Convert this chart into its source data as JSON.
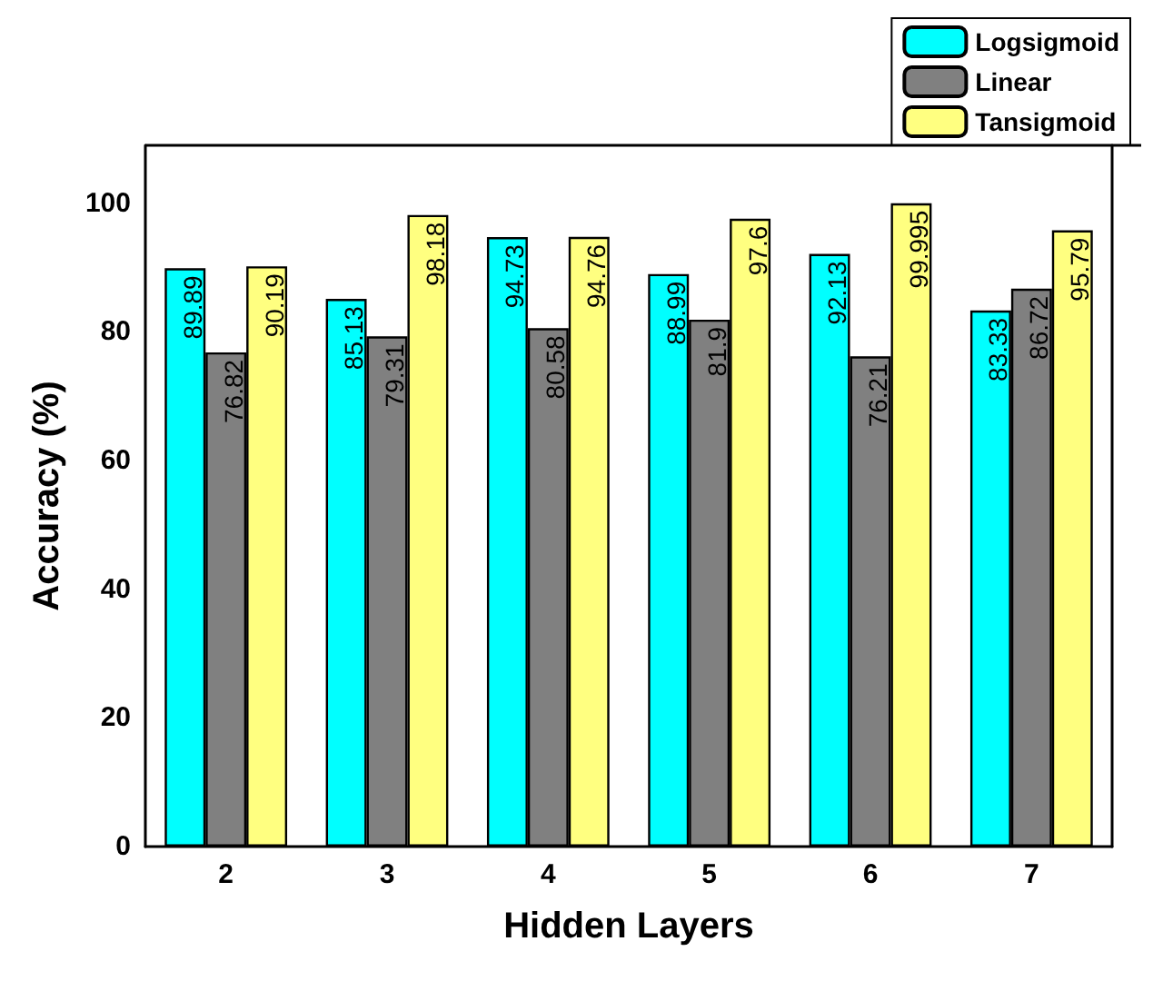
{
  "chart_data": {
    "type": "bar",
    "xlabel": "Hidden Layers",
    "ylabel": "Accuracy (%)",
    "categories": [
      "2",
      "3",
      "4",
      "5",
      "6",
      "7"
    ],
    "series": [
      {
        "name": "Logsigmoid",
        "color": "#00ffff",
        "values": [
          89.89,
          85.13,
          94.73,
          88.99,
          92.13,
          83.33
        ]
      },
      {
        "name": "Linear",
        "color": "#808080",
        "values": [
          76.82,
          79.31,
          80.58,
          81.9,
          76.21,
          86.72
        ]
      },
      {
        "name": "Tansigmoid",
        "color": "#ffff80",
        "values": [
          90.19,
          98.18,
          94.76,
          97.6,
          99.995,
          95.79
        ]
      }
    ],
    "ylim": [
      0,
      109
    ],
    "yticks": [
      0,
      20,
      40,
      60,
      80,
      100
    ],
    "grid": false,
    "legend": "top right",
    "data_labels": true
  }
}
